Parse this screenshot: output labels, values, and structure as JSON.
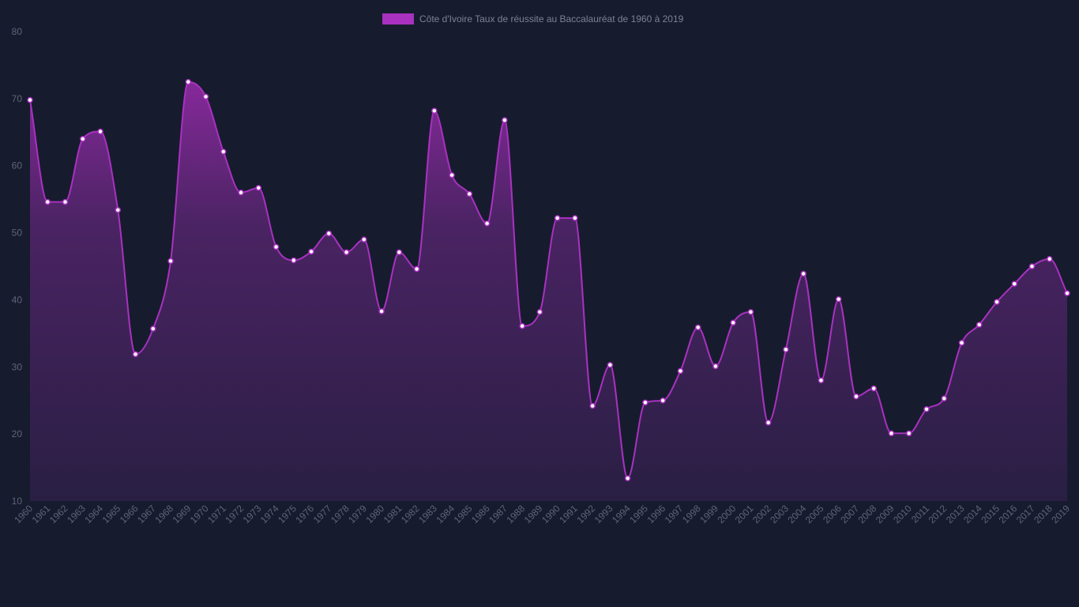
{
  "chart_data": {
    "type": "area",
    "legend": {
      "label": "Côte d'Ivoire Taux de réussite au Baccalauréat de 1960 à 2019",
      "position": "top-center"
    },
    "x": [
      "1960",
      "1961",
      "1962",
      "1963",
      "1964",
      "1965",
      "1966",
      "1967",
      "1968",
      "1969",
      "1970",
      "1971",
      "1972",
      "1973",
      "1974",
      "1975",
      "1976",
      "1977",
      "1978",
      "1979",
      "1980",
      "1981",
      "1982",
      "1983",
      "1984",
      "1985",
      "1986",
      "1987",
      "1988",
      "1989",
      "1990",
      "1991",
      "1992",
      "1993",
      "1994",
      "1995",
      "1996",
      "1997",
      "1998",
      "1999",
      "2000",
      "2001",
      "2002",
      "2003",
      "2004",
      "2005",
      "2006",
      "2007",
      "2008",
      "2009",
      "2010",
      "2011",
      "2012",
      "2013",
      "2014",
      "2015",
      "2016",
      "2017",
      "2018",
      "2019"
    ],
    "series": [
      {
        "name": "Côte d'Ivoire Taux de réussite au Baccalauréat de 1960 à 2019",
        "values": [
          69.8,
          54.6,
          54.6,
          64.0,
          65.1,
          53.4,
          31.9,
          35.7,
          45.8,
          72.5,
          70.3,
          62.1,
          56.0,
          56.7,
          47.9,
          45.9,
          47.2,
          49.9,
          47.1,
          49.0,
          38.3,
          47.1,
          44.6,
          68.2,
          58.6,
          55.8,
          51.4,
          66.8,
          36.1,
          38.2,
          52.2,
          52.2,
          24.2,
          30.3,
          13.4,
          24.7,
          25.0,
          29.4,
          35.9,
          30.1,
          36.6,
          38.2,
          21.7,
          32.6,
          43.9,
          28.0,
          40.1,
          25.6,
          26.8,
          20.1,
          20.1,
          23.7,
          25.3,
          33.6,
          36.3,
          39.7,
          42.4,
          45.0,
          46.1,
          41.0
        ]
      }
    ],
    "ylim": [
      10,
      80
    ],
    "yticks": [
      10,
      20,
      30,
      40,
      50,
      60,
      70,
      80
    ],
    "grid": false,
    "colors": {
      "line": "#a931c0",
      "fill_top": "#8c2aa0",
      "fill_bottom": "#2a1f44",
      "point_fill": "#ffffff",
      "point_stroke": "#a931c0",
      "background": "#171b2e",
      "tick_text": "#5f6478",
      "legend_swatch": "#a931c0"
    }
  }
}
